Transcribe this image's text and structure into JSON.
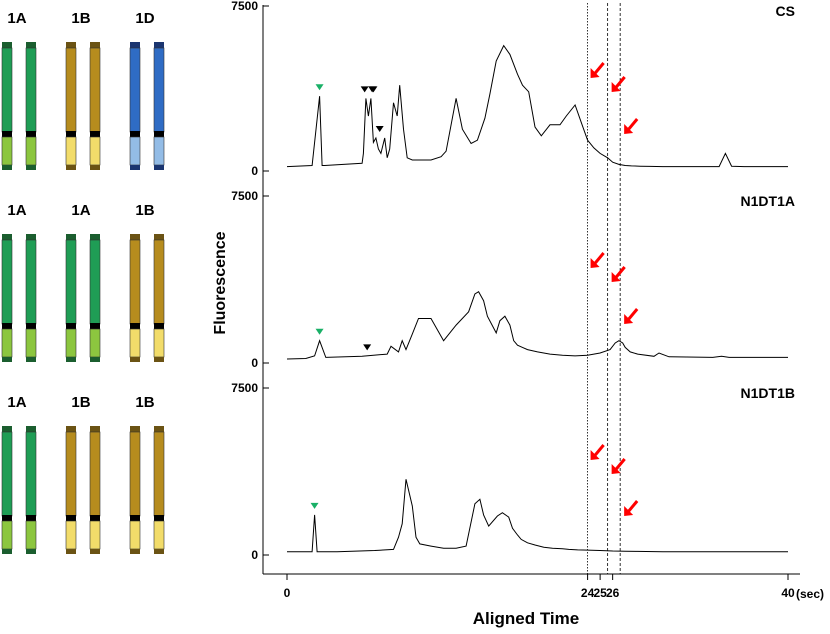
{
  "chart_data": {
    "type": "line",
    "xlabel": "Aligned Time",
    "ylabel": "Fluorescence",
    "x_unit": "(sec)",
    "x_ticks": [
      "0",
      "24",
      "25",
      "26",
      "40"
    ],
    "xlim": [
      0,
      40
    ],
    "ylim": [
      0,
      7500
    ],
    "y_ticks": [
      "0",
      "7500"
    ],
    "reference_lines_x": [
      24,
      25.6,
      26.6
    ],
    "arrow_color": "#ff0000",
    "marker_colors": {
      "green": "#19b067",
      "black": "#000000"
    },
    "panels": [
      {
        "name": "CS",
        "chromosomes": [
          {
            "label": "1A",
            "color": "green"
          },
          {
            "label": "1B",
            "color": "gold"
          },
          {
            "label": "1D",
            "color": "blue"
          }
        ],
        "x": [
          0,
          2,
          2.6,
          2.8,
          3.0,
          6,
          6.1,
          6.3,
          6.5,
          6.7,
          6.9,
          7.1,
          7.3,
          7.5,
          7.8,
          8.0,
          8.2,
          8.5,
          8.8,
          9.0,
          9.3,
          9.6,
          10.0,
          11.5,
          12.3,
          12.7,
          13.5,
          14.0,
          14.7,
          15.2,
          15.8,
          16.2,
          16.7,
          17.3,
          17.8,
          18.4,
          18.8,
          19.3,
          19.8,
          20.3,
          21.0,
          21.8,
          22.3,
          23.0,
          23.5,
          24.0,
          24.5,
          25.0,
          25.6,
          26.0,
          26.5,
          27.0,
          27.5,
          28.2,
          29.0,
          30.0,
          34.5,
          35.0,
          35.5,
          36.5,
          40
        ],
        "y": [
          200,
          250,
          3400,
          250,
          250,
          350,
          800,
          3300,
          2500,
          3300,
          1300,
          1500,
          1000,
          800,
          1500,
          600,
          1000,
          3100,
          2500,
          3900,
          1900,
          600,
          500,
          500,
          650,
          900,
          3300,
          1900,
          1250,
          1400,
          2400,
          3500,
          5000,
          5700,
          5300,
          4400,
          3900,
          3600,
          2000,
          1600,
          2100,
          2100,
          2500,
          3000,
          2200,
          1400,
          1050,
          800,
          600,
          400,
          300,
          250,
          230,
          220,
          210,
          200,
          200,
          800,
          220,
          200,
          200
        ],
        "markers": [
          {
            "type": "green-triangle",
            "x": 2.6
          },
          {
            "type": "black-triangle",
            "x": 6.2
          },
          {
            "type": "black-triangle",
            "x": 6.8
          },
          {
            "type": "black-triangle",
            "x": 6.9
          },
          {
            "type": "black-triangle",
            "x": 7.4
          }
        ]
      },
      {
        "name": "N1DT1A",
        "chromosomes": [
          {
            "label": "1A",
            "color": "green"
          },
          {
            "label": "1A",
            "color": "green"
          },
          {
            "label": "1B",
            "color": "gold"
          }
        ],
        "x": [
          0,
          1.5,
          2.2,
          2.6,
          3.1,
          6,
          8,
          8.3,
          8.9,
          9.2,
          9.5,
          10.0,
          10.5,
          11.5,
          12.5,
          13.5,
          14.5,
          15.0,
          15.3,
          15.7,
          16.0,
          16.7,
          17.0,
          17.4,
          17.8,
          18.1,
          18.4,
          18.8,
          19.2,
          20.0,
          21.0,
          22.0,
          23.0,
          24.0,
          25.0,
          25.8,
          26.2,
          26.5,
          26.8,
          27.0,
          27.4,
          28,
          29.3,
          29.7,
          30.5,
          34,
          34.7,
          35.3,
          40
        ],
        "y": [
          180,
          200,
          320,
          1000,
          250,
          300,
          400,
          750,
          500,
          1000,
          600,
          1300,
          2000,
          2000,
          1000,
          1700,
          2300,
          3100,
          3200,
          2800,
          2100,
          1350,
          1900,
          2100,
          1700,
          1000,
          800,
          700,
          600,
          500,
          400,
          350,
          320,
          350,
          450,
          600,
          900,
          1000,
          900,
          700,
          500,
          400,
          300,
          450,
          280,
          250,
          300,
          250,
          250
        ],
        "markers": [
          {
            "type": "green-triangle",
            "x": 2.6
          },
          {
            "type": "black-triangle",
            "x": 6.4
          }
        ]
      },
      {
        "name": "N1DT1B",
        "chromosomes": [
          {
            "label": "1A",
            "color": "green"
          },
          {
            "label": "1B",
            "color": "gold"
          },
          {
            "label": "1B",
            "color": "gold"
          }
        ],
        "x": [
          0,
          2.0,
          2.2,
          2.4,
          4,
          7,
          8.5,
          8.9,
          9.2,
          9.5,
          10.0,
          10.3,
          10.6,
          11.5,
          12.5,
          13.5,
          14.3,
          15.0,
          15.4,
          15.7,
          16.1,
          16.8,
          17.2,
          17.7,
          18.0,
          18.4,
          18.7,
          19.2,
          19.8,
          20.5,
          21.2,
          22.0,
          22.5,
          23.2,
          24.0,
          25.0,
          26.0,
          27.0,
          28,
          30,
          40
        ],
        "y": [
          150,
          150,
          1800,
          150,
          150,
          200,
          250,
          800,
          1400,
          3400,
          2200,
          800,
          500,
          400,
          300,
          300,
          400,
          2300,
          2500,
          1800,
          1300,
          1750,
          1900,
          1700,
          1200,
          900,
          700,
          550,
          450,
          350,
          300,
          280,
          250,
          230,
          220,
          200,
          180,
          170,
          160,
          150,
          150
        ],
        "markers": [
          {
            "type": "green-triangle",
            "x": 2.2
          }
        ]
      }
    ]
  }
}
